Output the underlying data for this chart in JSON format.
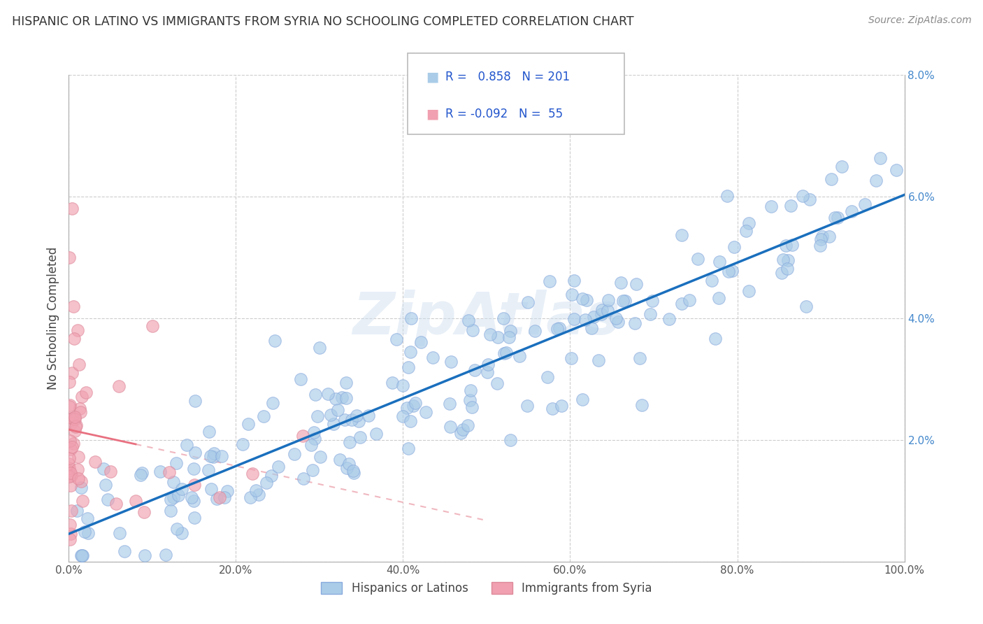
{
  "title": "HISPANIC OR LATINO VS IMMIGRANTS FROM SYRIA NO SCHOOLING COMPLETED CORRELATION CHART",
  "source": "Source: ZipAtlas.com",
  "ylabel": "No Schooling Completed",
  "watermark": "ZipAtlas",
  "blue_R": 0.858,
  "blue_N": 201,
  "pink_R": -0.092,
  "pink_N": 55,
  "blue_color": "#aacce8",
  "pink_color": "#f0a0b0",
  "blue_line_color": "#1a6fbd",
  "pink_line_color": "#e87080",
  "pink_dash_color": "#f0b8c0",
  "background_color": "#ffffff",
  "grid_color": "#cccccc",
  "title_color": "#333333",
  "legend_text_color": "#2255cc",
  "axis_label_color": "#4488cc",
  "xlim": [
    0,
    1
  ],
  "ylim": [
    0,
    0.08
  ],
  "xticks": [
    0,
    0.2,
    0.4,
    0.6,
    0.8,
    1.0
  ],
  "yticks": [
    0,
    0.02,
    0.04,
    0.06,
    0.08
  ],
  "xtick_labels": [
    "0.0%",
    "20.0%",
    "40.0%",
    "60.0%",
    "80.0%",
    "100.0%"
  ],
  "ytick_labels": [
    "",
    "2.0%",
    "4.0%",
    "6.0%",
    "8.0%"
  ],
  "figsize": [
    14.06,
    8.92
  ],
  "dpi": 100
}
